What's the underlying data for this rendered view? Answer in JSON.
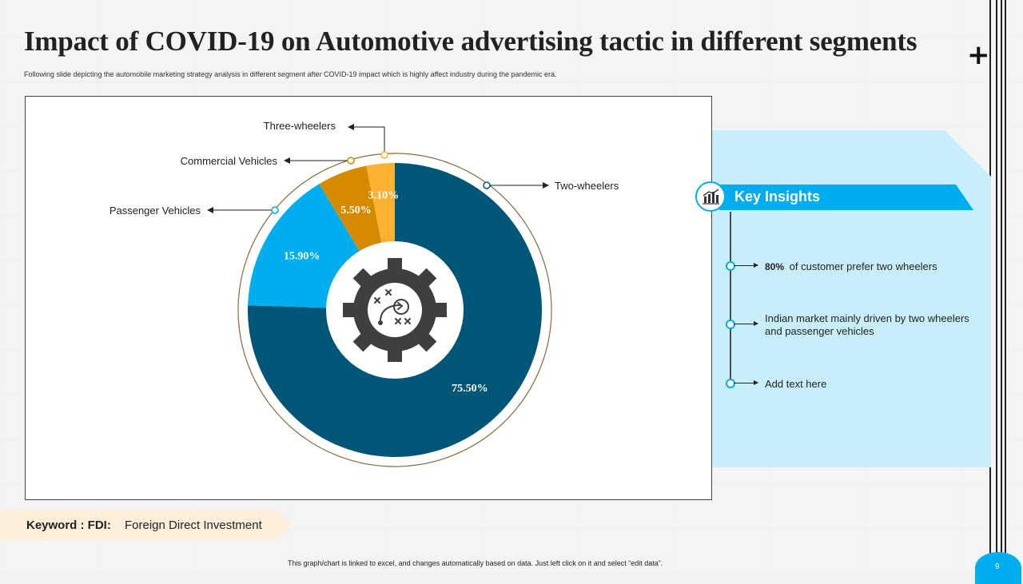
{
  "slide": {
    "title": "Impact of COVID-19 on Automotive advertising tactic in different segments",
    "subtitle": "Following slide depicting the automobile marketing strategy analysis in different segment after COVID-19 impact which is highly affect industry during the pandemic era.",
    "footer_note": "This graph/chart is linked to excel, and changes automatically based on data. Just left click on it and select “edit data”.",
    "page_number": "9"
  },
  "chart_data": {
    "type": "pie",
    "style": "donut",
    "categories": [
      "Two-wheelers",
      "Passenger Vehicles",
      "Commercial Vehicles",
      "Three-wheelers"
    ],
    "values": [
      75.5,
      15.9,
      5.5,
      3.1
    ],
    "value_labels": [
      "75.50%",
      "15.90%",
      "5.50%",
      "3.10%"
    ],
    "colors": [
      "#005677",
      "#00adef",
      "#d68a00",
      "#fbb131"
    ],
    "center_icon": "gear-strategy-icon"
  },
  "insights": {
    "title": "Key Insights",
    "icon": "chart-icon",
    "items": [
      {
        "highlight": "80%",
        "text": "of customer prefer two wheelers"
      },
      {
        "highlight": "",
        "text": "Indian market mainly driven by two wheelers and passenger vehicles"
      },
      {
        "highlight": "",
        "text": "Add text here"
      }
    ]
  },
  "keyword": {
    "label": "Keyword : FDI:",
    "value": "Foreign Direct Investment"
  }
}
